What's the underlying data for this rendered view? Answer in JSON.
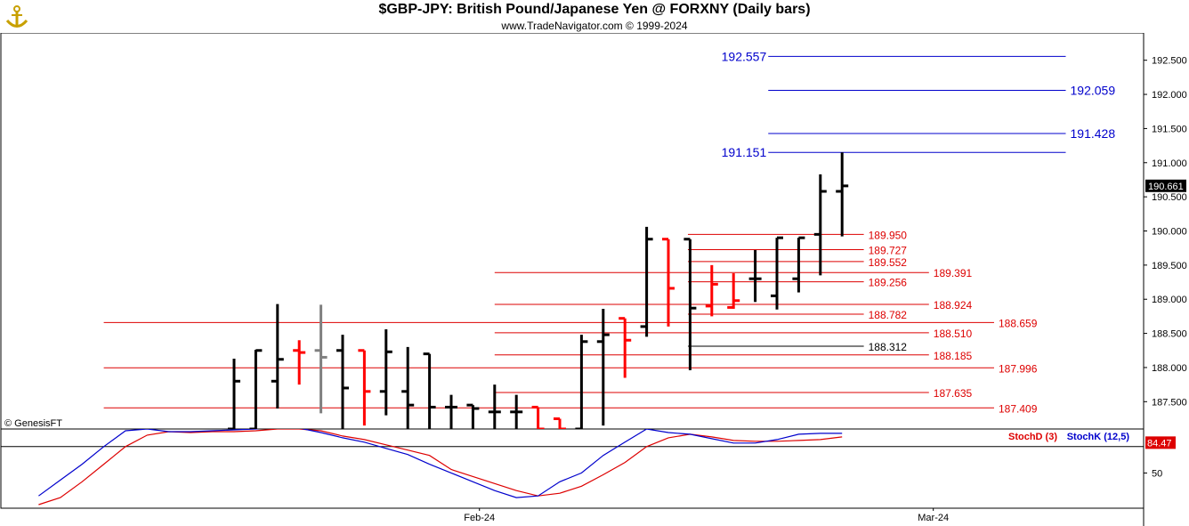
{
  "header": {
    "title": "$GBP-JPY:  British Pound/Japanese Yen @ FORXNY  (Daily bars)",
    "subtitle": "www.TradeNavigator.com © 1999-2024"
  },
  "watermark": "© GenesisFT",
  "colors": {
    "up_bar": "#000000",
    "down_bar": "#ff0000",
    "neutral_bar": "#808080",
    "blue_level": "#0000cc",
    "red_level": "#dd0000",
    "stoch_d": "#dd0000",
    "stoch_k": "#0000cc",
    "last_price_bg": "#000000"
  },
  "chart_data": [
    {
      "type": "ohlc",
      "title": "$GBP-JPY:  British Pound/Japanese Yen @ FORXNY  (Daily bars)",
      "ylim": [
        187.1,
        192.9
      ],
      "y_ticks": [
        "187.500",
        "188.000",
        "188.500",
        "189.000",
        "189.500",
        "190.000",
        "190.500",
        "191.000",
        "191.500",
        "192.000",
        "192.500"
      ],
      "x_labels": [
        {
          "bar": 11.3,
          "label": "Feb-24"
        },
        {
          "bar": 32.2,
          "label": "Mar-24"
        }
      ],
      "last_price": {
        "value": 190.661,
        "label": "190.661"
      },
      "bars": [
        {
          "o": 187.1,
          "h": 188.13,
          "l": 187.1,
          "c": 187.8,
          "color": "black"
        },
        {
          "o": 187.1,
          "h": 188.26,
          "l": 187.1,
          "c": 188.25,
          "color": "black"
        },
        {
          "o": 187.8,
          "h": 188.93,
          "l": 187.4,
          "c": 188.12,
          "color": "black"
        },
        {
          "o": 188.25,
          "h": 188.4,
          "l": 187.75,
          "c": 188.22,
          "color": "red"
        },
        {
          "o": 188.25,
          "h": 188.92,
          "l": 187.33,
          "c": 188.15,
          "color": "gray"
        },
        {
          "o": 188.25,
          "h": 188.48,
          "l": 187.1,
          "c": 187.7,
          "color": "black"
        },
        {
          "o": 188.25,
          "h": 188.25,
          "l": 187.15,
          "c": 187.65,
          "color": "red"
        },
        {
          "o": 187.65,
          "h": 188.56,
          "l": 187.3,
          "c": 188.23,
          "color": "black"
        },
        {
          "o": 187.65,
          "h": 188.3,
          "l": 187.1,
          "c": 187.45,
          "color": "black"
        },
        {
          "o": 188.2,
          "h": 188.2,
          "l": 187.1,
          "c": 187.42,
          "color": "black"
        },
        {
          "o": 187.42,
          "h": 187.6,
          "l": 187.1,
          "c": 187.42,
          "color": "black"
        },
        {
          "o": 187.45,
          "h": 187.45,
          "l": 187.1,
          "c": 187.4,
          "color": "black"
        },
        {
          "o": 187.35,
          "h": 187.75,
          "l": 187.1,
          "c": 187.35,
          "color": "black"
        },
        {
          "o": 187.35,
          "h": 187.6,
          "l": 187.1,
          "c": 187.35,
          "color": "black"
        },
        {
          "o": 187.42,
          "h": 187.42,
          "l": 187.1,
          "c": 187.1,
          "color": "red"
        },
        {
          "o": 187.25,
          "h": 187.25,
          "l": 187.1,
          "c": 187.1,
          "color": "red"
        },
        {
          "o": 187.1,
          "h": 188.48,
          "l": 187.1,
          "c": 188.38,
          "color": "black"
        },
        {
          "o": 188.38,
          "h": 188.86,
          "l": 187.15,
          "c": 188.48,
          "color": "black"
        },
        {
          "o": 188.72,
          "h": 188.72,
          "l": 187.85,
          "c": 188.4,
          "color": "red"
        },
        {
          "o": 188.6,
          "h": 190.06,
          "l": 188.45,
          "c": 189.88,
          "color": "black"
        },
        {
          "o": 189.88,
          "h": 189.88,
          "l": 188.6,
          "c": 189.16,
          "color": "red"
        },
        {
          "o": 189.88,
          "h": 189.88,
          "l": 187.96,
          "c": 188.87,
          "color": "black"
        },
        {
          "o": 188.9,
          "h": 189.5,
          "l": 188.75,
          "c": 189.22,
          "color": "red"
        },
        {
          "o": 188.88,
          "h": 189.38,
          "l": 188.86,
          "c": 188.98,
          "color": "red"
        },
        {
          "o": 189.3,
          "h": 189.72,
          "l": 188.96,
          "c": 189.3,
          "color": "black"
        },
        {
          "o": 189.05,
          "h": 189.9,
          "l": 188.85,
          "c": 189.9,
          "color": "black"
        },
        {
          "o": 189.3,
          "h": 189.9,
          "l": 189.1,
          "c": 189.9,
          "color": "black"
        },
        {
          "o": 189.95,
          "h": 190.83,
          "l": 189.35,
          "c": 190.58,
          "color": "black"
        },
        {
          "o": 190.58,
          "h": 191.15,
          "l": 189.92,
          "c": 190.66,
          "color": "black"
        }
      ],
      "levels": [
        {
          "value": 192.557,
          "label": "192.557",
          "color": "blue",
          "bar_start": 24.6,
          "bar_end": 38.3,
          "label_side": "left"
        },
        {
          "value": 192.059,
          "label": "192.059",
          "color": "blue",
          "bar_start": 24.6,
          "bar_end": 38.3,
          "label_side": "right"
        },
        {
          "value": 191.428,
          "label": "191.428",
          "color": "blue",
          "bar_start": 24.6,
          "bar_end": 38.3,
          "label_side": "right"
        },
        {
          "value": 191.151,
          "label": "191.151",
          "color": "blue",
          "bar_start": 24.6,
          "bar_end": 38.3,
          "label_side": "left"
        },
        {
          "value": 189.95,
          "label": "189.950",
          "color": "red",
          "bar_start": 20.9,
          "bar_end": 29.0,
          "label_side": "right"
        },
        {
          "value": 189.727,
          "label": "189.727",
          "color": "red",
          "bar_start": 20.9,
          "bar_end": 29.0,
          "label_side": "right"
        },
        {
          "value": 189.552,
          "label": "189.552",
          "color": "red",
          "bar_start": 20.9,
          "bar_end": 29.0,
          "label_side": "right"
        },
        {
          "value": 189.391,
          "label": "189.391",
          "color": "red",
          "bar_start": 12.0,
          "bar_end": 32.0,
          "label_side": "right"
        },
        {
          "value": 189.256,
          "label": "189.256",
          "color": "red",
          "bar_start": 20.9,
          "bar_end": 29.0,
          "label_side": "right"
        },
        {
          "value": 188.924,
          "label": "188.924",
          "color": "red",
          "bar_start": 12.0,
          "bar_end": 32.0,
          "label_side": "right"
        },
        {
          "value": 188.782,
          "label": "188.782",
          "color": "red",
          "bar_start": 20.9,
          "bar_end": 29.0,
          "label_side": "right"
        },
        {
          "value": 188.659,
          "label": "188.659",
          "color": "red",
          "bar_start": -6.0,
          "bar_end": 35.0,
          "label_side": "right"
        },
        {
          "value": 188.51,
          "label": "188.510",
          "color": "red",
          "bar_start": 12.0,
          "bar_end": 32.0,
          "label_side": "right"
        },
        {
          "value": 188.312,
          "label": "188.312",
          "color": "black",
          "bar_start": 20.9,
          "bar_end": 29.0,
          "label_side": "right"
        },
        {
          "value": 188.185,
          "label": "188.185",
          "color": "red",
          "bar_start": 12.0,
          "bar_end": 32.0,
          "label_side": "right"
        },
        {
          "value": 187.996,
          "label": "187.996",
          "color": "red",
          "bar_start": -6.0,
          "bar_end": 35.0,
          "label_side": "right"
        },
        {
          "value": 187.635,
          "label": "187.635",
          "color": "red",
          "bar_start": 12.0,
          "bar_end": 32.0,
          "label_side": "right"
        },
        {
          "value": 187.409,
          "label": "187.409",
          "color": "red",
          "bar_start": -6.0,
          "bar_end": 35.0,
          "label_side": "right"
        }
      ]
    },
    {
      "type": "line",
      "ylim": [
        10,
        100
      ],
      "y_ticks": [
        "50"
      ],
      "current_value": {
        "value": 84.47,
        "label": "84.47"
      },
      "series": [
        {
          "name": "StochD (3)",
          "color": "red",
          "values": [
            [
              -9,
              14
            ],
            [
              -8,
              22
            ],
            [
              -7,
              40
            ],
            [
              -6,
              60
            ],
            [
              -5,
              80
            ],
            [
              -4,
              93
            ],
            [
              -3,
              97
            ],
            [
              -2,
              96
            ],
            [
              -1,
              97
            ],
            [
              0,
              97
            ],
            [
              1,
              98
            ],
            [
              2,
              100
            ],
            [
              3,
              100
            ],
            [
              4,
              98
            ],
            [
              5,
              92
            ],
            [
              6,
              88
            ],
            [
              7,
              82
            ],
            [
              8,
              76
            ],
            [
              9,
              70
            ],
            [
              10,
              54
            ],
            [
              11,
              46
            ],
            [
              12,
              38
            ],
            [
              13,
              30
            ],
            [
              14,
              24
            ],
            [
              15,
              27
            ],
            [
              16,
              35
            ],
            [
              17,
              48
            ],
            [
              18,
              62
            ],
            [
              19,
              80
            ],
            [
              20,
              90
            ],
            [
              21,
              94
            ],
            [
              22,
              91
            ],
            [
              23,
              87
            ],
            [
              24,
              86
            ],
            [
              25,
              86
            ],
            [
              26,
              87
            ],
            [
              27,
              88
            ],
            [
              28,
              91
            ]
          ]
        },
        {
          "name": "StochK (12,5)",
          "color": "blue",
          "values": [
            [
              -9,
              24
            ],
            [
              -8,
              42
            ],
            [
              -7,
              60
            ],
            [
              -6,
              80
            ],
            [
              -5,
              98
            ],
            [
              -4,
              100
            ],
            [
              -3,
              97
            ],
            [
              -2,
              97
            ],
            [
              -1,
              98
            ],
            [
              0,
              99
            ],
            [
              1,
              100
            ],
            [
              2,
              103
            ],
            [
              3,
              101
            ],
            [
              4,
              96
            ],
            [
              5,
              90
            ],
            [
              6,
              85
            ],
            [
              7,
              78
            ],
            [
              8,
              71
            ],
            [
              9,
              60
            ],
            [
              10,
              50
            ],
            [
              11,
              40
            ],
            [
              12,
              30
            ],
            [
              13,
              22
            ],
            [
              14,
              24
            ],
            [
              15,
              40
            ],
            [
              16,
              50
            ],
            [
              17,
              70
            ],
            [
              18,
              85
            ],
            [
              19,
              100
            ],
            [
              20,
              96
            ],
            [
              21,
              94
            ],
            [
              22,
              89
            ],
            [
              23,
              84
            ],
            [
              24,
              84
            ],
            [
              25,
              88
            ],
            [
              26,
              94
            ],
            [
              27,
              95
            ],
            [
              28,
              95
            ]
          ]
        }
      ]
    }
  ]
}
